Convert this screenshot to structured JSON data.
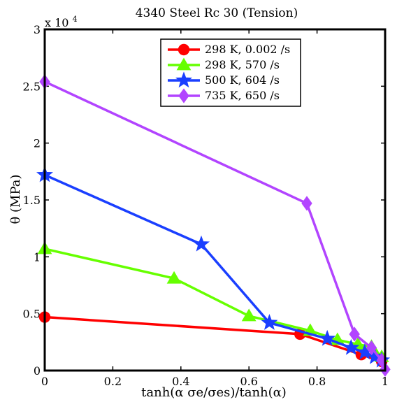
{
  "chart_data": {
    "type": "line",
    "title": "4340 Steel Rc 30 (Tension)",
    "xlabel": "tanh(α σe/σes)/tanh(α)",
    "ylabel": "θ (MPa)",
    "y_multiplier_label": "x 10",
    "y_multiplier_exponent": "4",
    "xlim": [
      0,
      1
    ],
    "ylim": [
      0,
      30000
    ],
    "xticks": [
      0,
      0.2,
      0.4,
      0.6,
      0.8,
      1
    ],
    "xtick_labels": [
      "0",
      "0.2",
      "0.4",
      "0.6",
      "0.8",
      "1"
    ],
    "yticks": [
      0,
      5000,
      10000,
      15000,
      20000,
      25000,
      30000
    ],
    "ytick_labels": [
      "0",
      "0.5",
      "1",
      "1.5",
      "2",
      "2.5",
      "3"
    ],
    "legend_position": "top-right",
    "grid": false,
    "series": [
      {
        "name": "298 K, 0.002 /s",
        "color": "#ff0000",
        "marker": "circle",
        "points": [
          [
            0,
            4700
          ],
          [
            0.75,
            3200
          ],
          [
            0.93,
            1400
          ],
          [
            0.99,
            800
          ]
        ]
      },
      {
        "name": "298 K, 570 /s",
        "color": "#66ff00",
        "marker": "triangle",
        "points": [
          [
            0,
            10700
          ],
          [
            0.38,
            8100
          ],
          [
            0.6,
            4800
          ],
          [
            0.78,
            3500
          ],
          [
            0.86,
            2700
          ],
          [
            0.92,
            2300
          ],
          [
            0.96,
            2100
          ],
          [
            0.99,
            1200
          ]
        ]
      },
      {
        "name": "500 K, 604 /s",
        "color": "#1a3fff",
        "marker": "star",
        "points": [
          [
            0,
            17200
          ],
          [
            0.46,
            11100
          ],
          [
            0.66,
            4200
          ],
          [
            0.83,
            2800
          ],
          [
            0.9,
            2000
          ],
          [
            0.94,
            1600
          ],
          [
            0.97,
            1200
          ],
          [
            0.99,
            900
          ]
        ]
      },
      {
        "name": "735 K, 650 /s",
        "color": "#b244ff",
        "marker": "diamond",
        "points": [
          [
            0,
            25400
          ],
          [
            0.77,
            14700
          ],
          [
            0.91,
            3200
          ],
          [
            0.96,
            2000
          ],
          [
            0.99,
            900
          ],
          [
            1.0,
            100
          ]
        ]
      }
    ]
  }
}
